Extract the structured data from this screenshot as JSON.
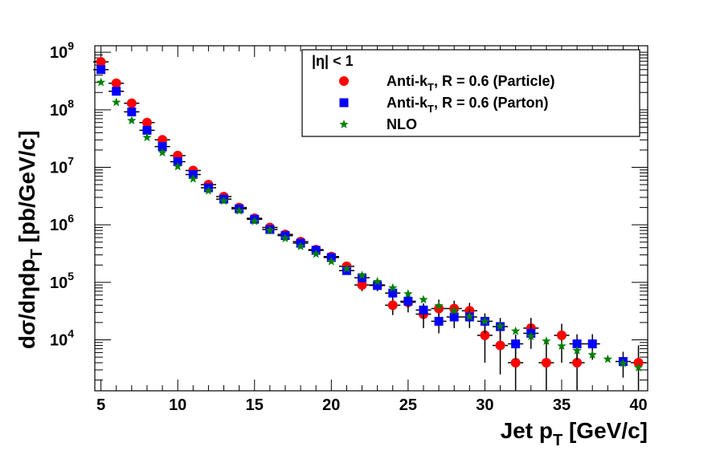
{
  "chart_data": {
    "type": "scatter",
    "title": "",
    "xlabel": "Jet p",
    "xlabel_sub": "T",
    "xlabel_unit": " [GeV/c]",
    "ylabel_html": "dσ/dηdp",
    "ylabel_sub": "T",
    "ylabel_unit": " [pb/GeV/c]",
    "xlim": [
      4.6,
      40.6
    ],
    "ylim": [
      1300.0,
      1300000000.0
    ],
    "yscale": "log",
    "x_ticks": [
      "5",
      "10",
      "15",
      "20",
      "25",
      "30",
      "35",
      "40"
    ],
    "x_tick_values": [
      5,
      10,
      15,
      20,
      25,
      30,
      35,
      40
    ],
    "y_tick_exponents": [
      4,
      5,
      6,
      7,
      8,
      9
    ],
    "y_tick_base": "10",
    "legend": {
      "placement": "top-right",
      "header": "|η| < 1",
      "entries": [
        {
          "label": "Anti-k",
          "sub": "T",
          "rest": ", R = 0.6 (Particle)",
          "color": "#ff0000",
          "marker": "circle"
        },
        {
          "label": "Anti-k",
          "sub": "T",
          "rest": ", R = 0.6 (Parton)",
          "color": "#0000ff",
          "marker": "square"
        },
        {
          "label": "NLO",
          "sub": "",
          "rest": "",
          "color": "#008000",
          "marker": "star"
        }
      ]
    },
    "series": [
      {
        "name": "Anti-kT, R = 0.6 (Particle)",
        "color": "#ff0000",
        "marker": "circle",
        "x": [
          5,
          6,
          7,
          8,
          9,
          10,
          11,
          12,
          13,
          14,
          15,
          16,
          17,
          18,
          19,
          20,
          21,
          22,
          23,
          24,
          25,
          26,
          27,
          28,
          29,
          30,
          31,
          32,
          33,
          34,
          35,
          36,
          40
        ],
        "y": [
          680000000.0,
          290000000.0,
          130000000.0,
          60000000.0,
          30000000.0,
          16000000.0,
          8800000.0,
          5000000.0,
          3100000.0,
          2000000.0,
          1300000.0,
          900000.0,
          680000.0,
          510000.0,
          370000.0,
          280000.0,
          190000.0,
          90000.0,
          90000.0,
          40000.0,
          45000.0,
          28000.0,
          35000.0,
          35000.0,
          32000.0,
          12000.0,
          8000.0,
          4000.0,
          16000.0,
          4000.0,
          12000.0,
          4000.0,
          4000.0
        ],
        "err_low": [
          600000000.0,
          260000000.0,
          117000000.0,
          54000000.0,
          27000000.0,
          14400000.0,
          7900000.0,
          4500000.0,
          2800000.0,
          1800000.0,
          1170000.0,
          810000.0,
          610000.0,
          460000.0,
          330000.0,
          250000.0,
          160000.0,
          70000.0,
          70000.0,
          27000.0,
          30000.0,
          16000.0,
          19000.0,
          22000.0,
          20000.0,
          4000.0,
          2500.0,
          1350.0,
          7000.0,
          1350.0,
          4000.0,
          1350.0,
          1350.0
        ],
        "err_high": [
          760000000.0,
          320000000.0,
          143000000.0,
          66000000.0,
          33000000.0,
          17600000.0,
          9700000.0,
          5500000.0,
          3400000.0,
          2200000.0,
          1430000.0,
          990000.0,
          750000.0,
          560000.0,
          410000.0,
          310000.0,
          220000.0,
          110000.0,
          110000.0,
          53000.0,
          60000.0,
          40000.0,
          50000.0,
          48000.0,
          44000.0,
          20000.0,
          16000.0,
          9000.0,
          24000.0,
          9000.0,
          19000.0,
          9000.0,
          8000.0
        ]
      },
      {
        "name": "Anti-kT, R = 0.6 (Parton)",
        "color": "#0000ff",
        "marker": "square",
        "x": [
          5,
          6,
          7,
          8,
          9,
          10,
          11,
          12,
          13,
          14,
          15,
          16,
          17,
          18,
          19,
          20,
          21,
          22,
          23,
          24,
          25,
          26,
          27,
          28,
          29,
          30,
          31,
          32,
          33,
          36,
          37,
          39
        ],
        "y": [
          500000000.0,
          210000000.0,
          92000000.0,
          44000000.0,
          23000000.0,
          12500000.0,
          7500000.0,
          4400000.0,
          2800000.0,
          1900000.0,
          1250000.0,
          830000.0,
          650000.0,
          480000.0,
          360000.0,
          270000.0,
          160000.0,
          120000.0,
          88000.0,
          65000.0,
          47000.0,
          33000.0,
          21000.0,
          25000.0,
          25000.0,
          21000.0,
          17000.0,
          8500.0,
          13000.0,
          8500.0,
          8500.0,
          4200.0
        ],
        "err_low": [
          450000000.0,
          190000000.0,
          83000000.0,
          40000000.0,
          21000000.0,
          11300000.0,
          6800000.0,
          4000000.0,
          2500000.0,
          1700000.0,
          1130000.0,
          750000.0,
          590000.0,
          430000.0,
          320000.0,
          240000.0,
          140000.0,
          100000.0,
          74000.0,
          52000.0,
          36000.0,
          23000.0,
          13000.0,
          16000.0,
          16000.0,
          13000.0,
          10000.0,
          4500.0,
          7000.0,
          4500.0,
          4500.0,
          2200.0
        ],
        "err_high": [
          550000000.0,
          230000000.0,
          101000000.0,
          48000000.0,
          25000000.0,
          13700000.0,
          8200000.0,
          4800000.0,
          3100000.0,
          2100000.0,
          1370000.0,
          910000.0,
          710000.0,
          530000.0,
          400000.0,
          300000.0,
          180000.0,
          140000.0,
          102000.0,
          78000.0,
          58000.0,
          43000.0,
          29000.0,
          34000.0,
          34000.0,
          29000.0,
          24000.0,
          12500.0,
          19000.0,
          12500.0,
          12500.0,
          6200.0
        ]
      },
      {
        "name": "NLO",
        "color": "#008000",
        "marker": "star",
        "x": [
          5,
          6,
          7,
          8,
          9,
          10,
          11,
          12,
          13,
          14,
          15,
          16,
          17,
          18,
          19,
          20,
          21,
          22,
          23,
          24,
          25,
          26,
          27,
          28,
          29,
          30,
          31,
          32,
          33,
          34,
          35,
          36,
          37,
          38,
          39,
          40
        ],
        "y": [
          300000000.0,
          135000000.0,
          65000000.0,
          33000000.0,
          18000000.0,
          10300000.0,
          6300000.0,
          3900000.0,
          2600000.0,
          1750000.0,
          1150000.0,
          800000.0,
          580000.0,
          420000.0,
          310000.0,
          230000.0,
          173000.0,
          132000.0,
          103000.0,
          80000.0,
          63000.0,
          50000.0,
          39000.0,
          32000.0,
          25500.0,
          21000.0,
          17200.0,
          14200.0,
          11500.0,
          9500.0,
          7800.0,
          6500.0,
          5500.0,
          4600.0,
          3900.0,
          3300.0
        ]
      }
    ],
    "grid": false
  }
}
